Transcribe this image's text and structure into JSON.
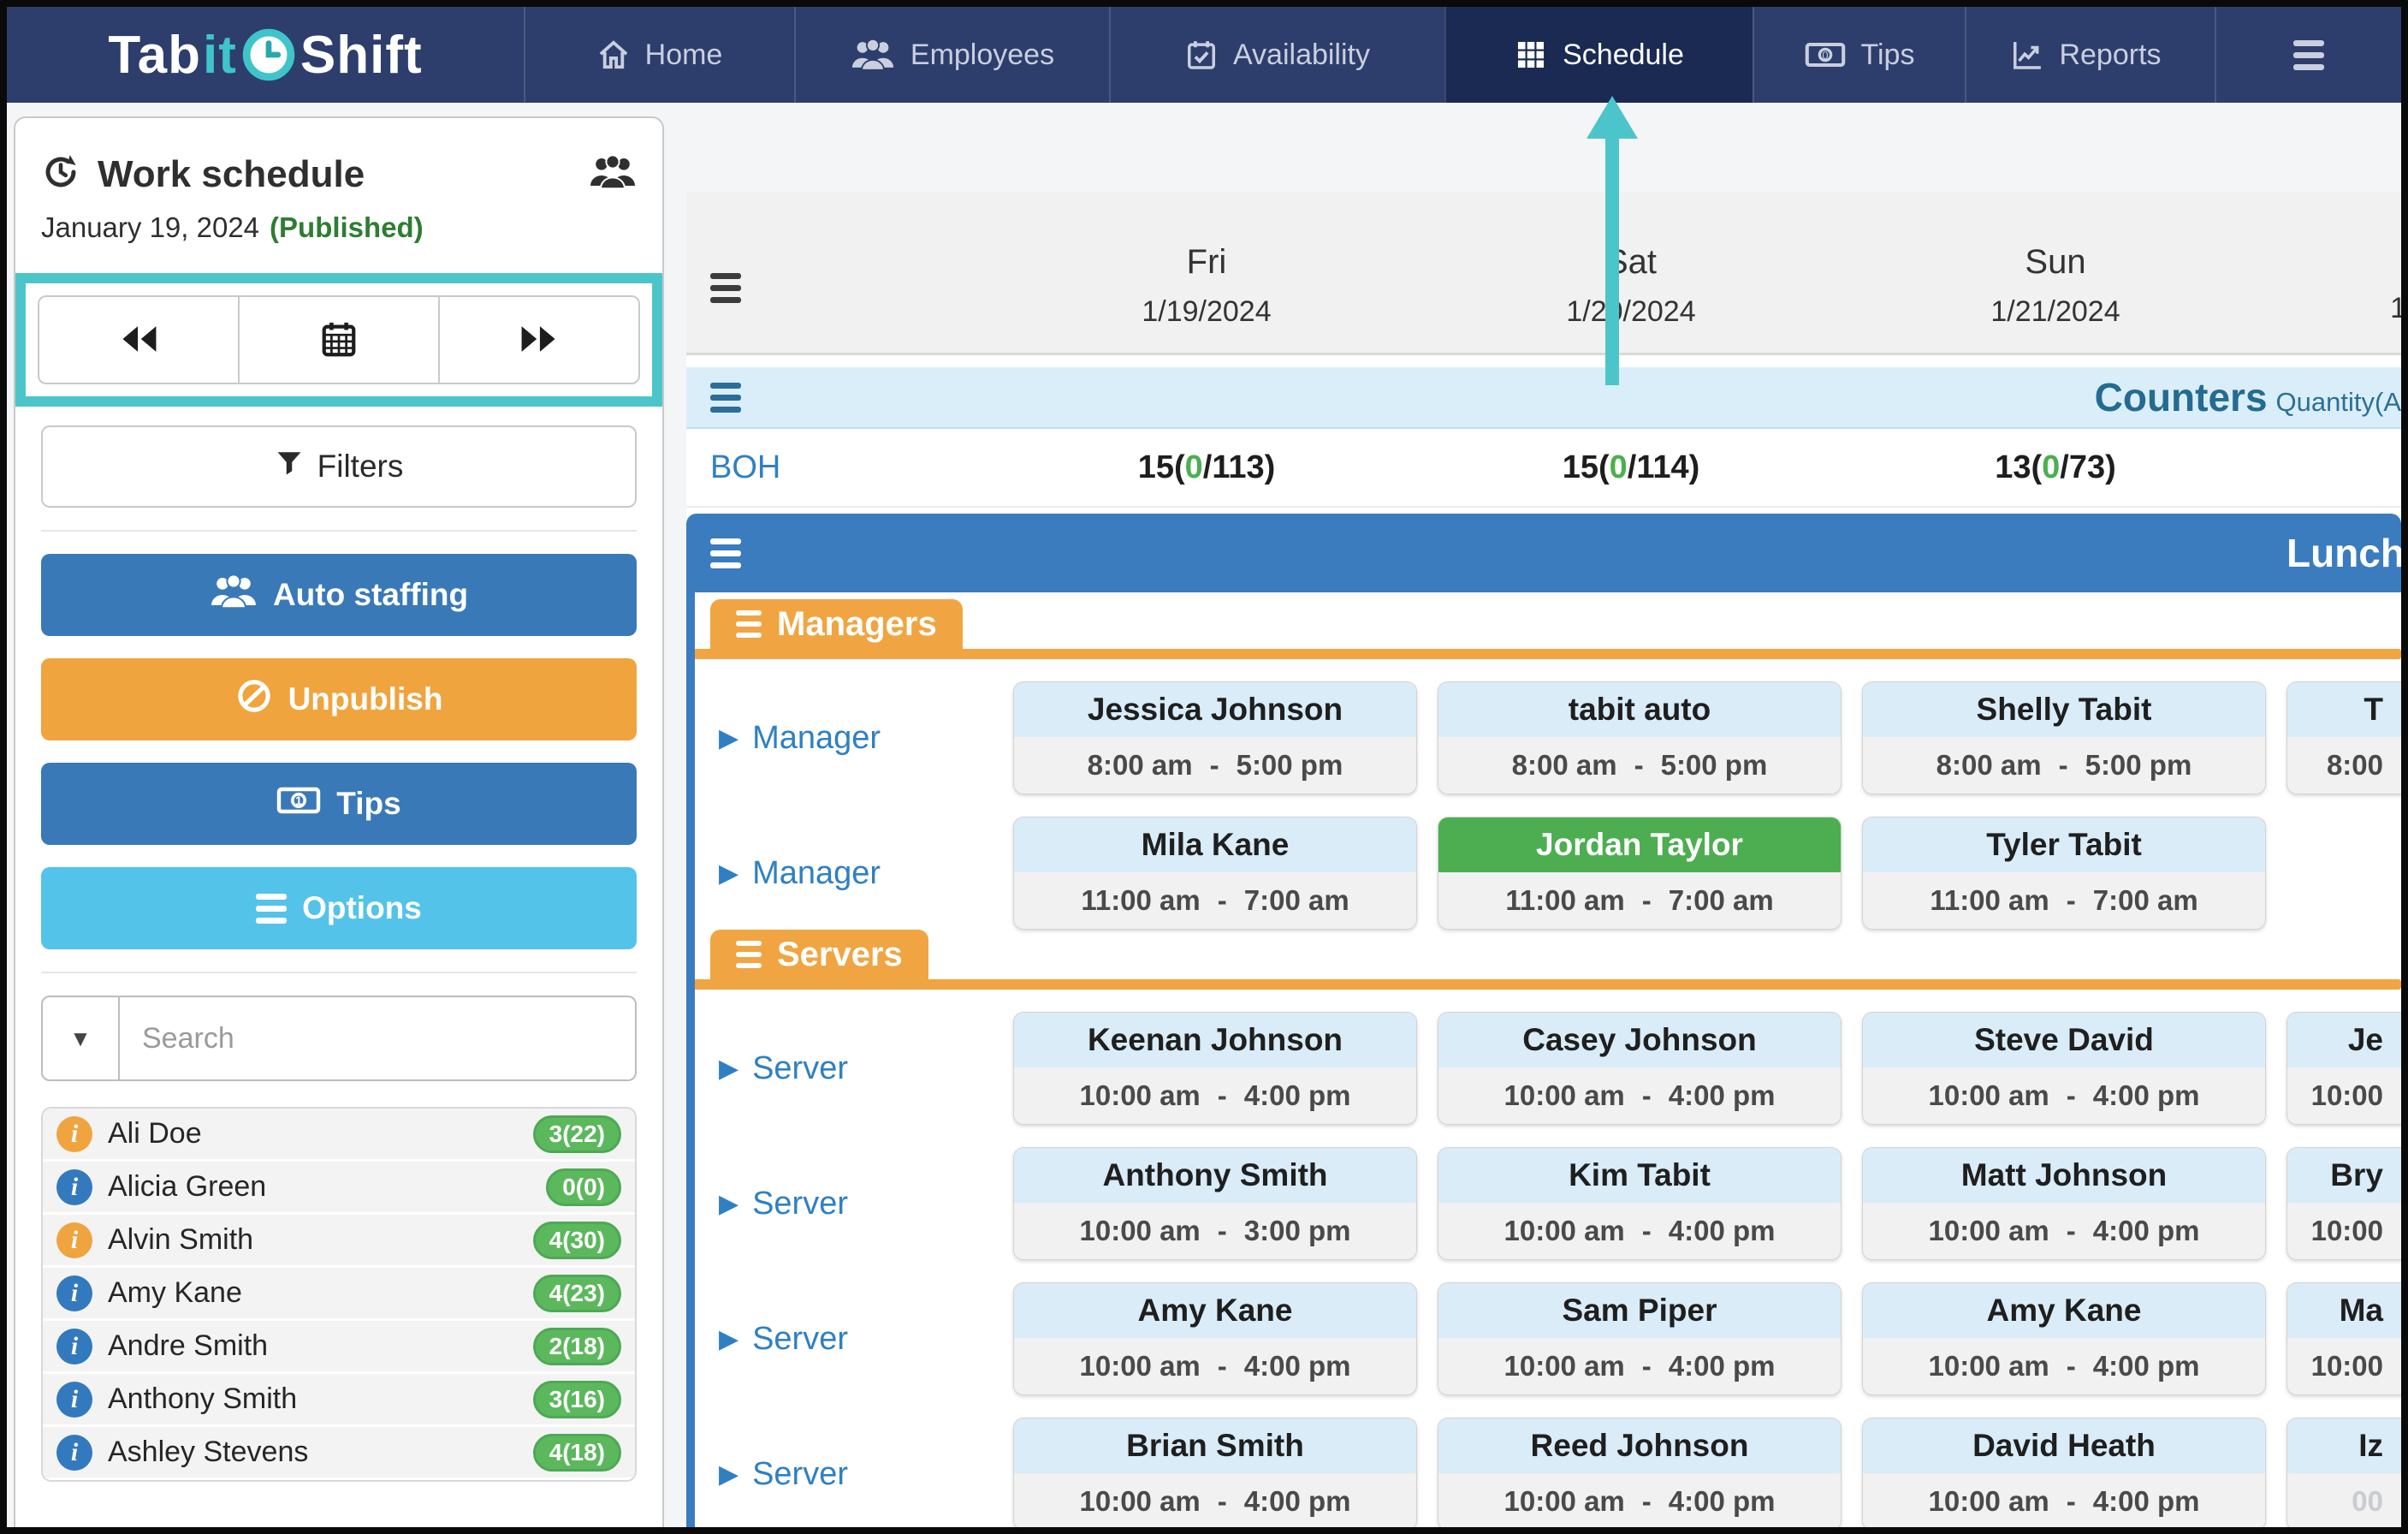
{
  "nav": {
    "brand": {
      "tab": "Tab",
      "it": "it",
      "shift": "Shift"
    },
    "items": [
      {
        "label": "Home",
        "icon": "home-icon"
      },
      {
        "label": "Employees",
        "icon": "employees-icon"
      },
      {
        "label": "Availability",
        "icon": "availability-icon"
      },
      {
        "label": "Schedule",
        "icon": "schedule-icon"
      },
      {
        "label": "Tips",
        "icon": "tips-icon"
      },
      {
        "label": "Reports",
        "icon": "reports-icon"
      }
    ],
    "active": "Schedule"
  },
  "sidebar": {
    "title": "Work schedule",
    "date": "January 19, 2024",
    "status": "(Published)",
    "filters_label": "Filters",
    "actions": {
      "auto_staffing": "Auto staffing",
      "unpublish": "Unpublish",
      "tips": "Tips",
      "options": "Options"
    },
    "search_placeholder": "Search",
    "employees": [
      {
        "name": "Ali Doe",
        "badge": "3(22)",
        "icon": "orange"
      },
      {
        "name": "Alicia Green",
        "badge": "0(0)",
        "icon": "blue"
      },
      {
        "name": "Alvin Smith",
        "badge": "4(30)",
        "icon": "orange"
      },
      {
        "name": "Amy Kane",
        "badge": "4(23)",
        "icon": "blue"
      },
      {
        "name": "Andre Smith",
        "badge": "2(18)",
        "icon": "blue"
      },
      {
        "name": "Anthony Smith",
        "badge": "3(16)",
        "icon": "blue"
      },
      {
        "name": "Ashley Stevens",
        "badge": "4(18)",
        "icon": "blue"
      }
    ]
  },
  "schedule": {
    "days": [
      {
        "label": "Fri",
        "date": "1/19/2024"
      },
      {
        "label": "Sat",
        "date": "1/20/2024"
      },
      {
        "label": "Sun",
        "date": "1/21/2024"
      }
    ],
    "next_day_fragment": "1",
    "time_separator": "-",
    "counters": {
      "title": "Counters",
      "subtitle": "Quantity(A",
      "row_label": "BOH",
      "values": [
        {
          "pre": "15(",
          "green": "0",
          "post": "/113)"
        },
        {
          "pre": "15(",
          "green": "0",
          "post": "/114)"
        },
        {
          "pre": "13(",
          "green": "0",
          "post": "/73)"
        }
      ]
    },
    "section_title": "Lunch",
    "groups": [
      {
        "name": "Managers",
        "rows": [
          {
            "role": "Manager",
            "cells": [
              {
                "name": "Jessica Johnson",
                "start": "8:00 am",
                "end": "5:00 pm"
              },
              {
                "name": "tabit auto",
                "start": "8:00 am",
                "end": "5:00 pm"
              },
              {
                "name": "Shelly Tabit",
                "start": "8:00 am",
                "end": "5:00 pm"
              },
              {
                "partial": true,
                "name_fragment": "T",
                "time_fragment": "8:00"
              }
            ]
          },
          {
            "role": "Manager",
            "cells": [
              {
                "name": "Mila Kane",
                "start": "11:00 am",
                "end": "7:00 am"
              },
              {
                "name": "Jordan Taylor",
                "start": "11:00 am",
                "end": "7:00 am",
                "variant": "green"
              },
              {
                "name": "Tyler Tabit",
                "start": "11:00 am",
                "end": "7:00 am"
              },
              null
            ]
          }
        ]
      },
      {
        "name": "Servers",
        "rows": [
          {
            "role": "Server",
            "cells": [
              {
                "name": "Keenan Johnson",
                "start": "10:00 am",
                "end": "4:00 pm"
              },
              {
                "name": "Casey Johnson",
                "start": "10:00 am",
                "end": "4:00 pm"
              },
              {
                "name": "Steve David",
                "start": "10:00 am",
                "end": "4:00 pm"
              },
              {
                "partial": true,
                "name_fragment": "Je",
                "time_fragment": "10:00"
              }
            ]
          },
          {
            "role": "Server",
            "cells": [
              {
                "name": "Anthony Smith",
                "start": "10:00 am",
                "end": "3:00 pm"
              },
              {
                "name": "Kim Tabit",
                "start": "10:00 am",
                "end": "4:00 pm"
              },
              {
                "name": "Matt Johnson",
                "start": "10:00 am",
                "end": "4:00 pm"
              },
              {
                "partial": true,
                "name_fragment": "Bry",
                "time_fragment": "10:00"
              }
            ]
          },
          {
            "role": "Server",
            "cells": [
              {
                "name": "Amy Kane",
                "start": "10:00 am",
                "end": "4:00 pm"
              },
              {
                "name": "Sam Piper",
                "start": "10:00 am",
                "end": "4:00 pm"
              },
              {
                "name": "Amy Kane",
                "start": "10:00 am",
                "end": "4:00 pm"
              },
              {
                "partial": true,
                "name_fragment": "Ma",
                "time_fragment": "10:00"
              }
            ]
          },
          {
            "role": "Server",
            "cells": [
              {
                "name": "Brian Smith",
                "start": "10:00 am",
                "end": "4:00 pm"
              },
              {
                "name": "Reed Johnson",
                "start": "10:00 am",
                "end": "4:00 pm"
              },
              {
                "name": "David Heath",
                "start": "10:00 am",
                "end": "4:00 pm"
              },
              {
                "partial": true,
                "name_fragment": "Iz",
                "time_fragment": "00",
                "muted": true
              }
            ]
          }
        ]
      }
    ]
  },
  "colors": {
    "annotation_accent": "#4cc5ca",
    "navbar": "#2d3e6c",
    "primary_blue": "#3a79b8",
    "orange": "#efa43e",
    "cyan": "#54c3e9",
    "green": "#4cae50",
    "badge_green": "#5cb85c"
  }
}
